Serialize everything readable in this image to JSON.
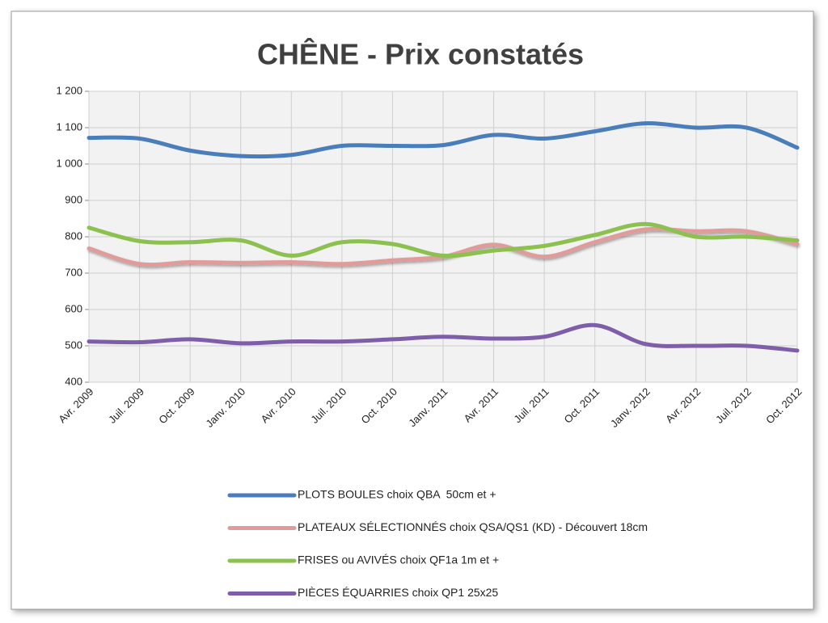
{
  "chart_data": {
    "type": "line",
    "title": "CHÊNE - Prix constatés",
    "categories": [
      "Avr. 2009",
      "Juil. 2009",
      "Oct. 2009",
      "Janv. 2010",
      "Avr. 2010",
      "Juil. 2010",
      "Oct. 2010",
      "Janv. 2011",
      "Avr. 2011",
      "Juil. 2011",
      "Oct. 2011",
      "Janv. 2012",
      "Avr. 2012",
      "Juil. 2012",
      "Oct. 2012"
    ],
    "series": [
      {
        "name": "PLOTS BOULES choix QBA  50cm et +",
        "color": "#4a7ebb",
        "values": [
          1072,
          1070,
          1037,
          1022,
          1025,
          1050,
          1050,
          1052,
          1080,
          1070,
          1090,
          1112,
          1100,
          1100,
          1045
        ]
      },
      {
        "name": "PLATEAUX SÉLECTIONNÉS choix QSA/QS1 (KD) - Découvert 18cm",
        "color": "#e09b9b",
        "values": [
          768,
          725,
          730,
          728,
          730,
          725,
          735,
          745,
          778,
          745,
          785,
          820,
          815,
          815,
          780
        ]
      },
      {
        "name": "FRISES ou AVIVÉS choix QF1a 1m et +",
        "color": "#8cc04f",
        "values": [
          825,
          788,
          785,
          790,
          748,
          785,
          780,
          748,
          762,
          775,
          805,
          835,
          800,
          800,
          790
        ]
      },
      {
        "name": "PIÈCES ÉQUARRIES choix QP1 25x25",
        "color": "#7e5ea8",
        "values": [
          512,
          510,
          518,
          507,
          512,
          512,
          518,
          525,
          520,
          525,
          557,
          505,
          500,
          500,
          487
        ]
      }
    ],
    "ylim": [
      400,
      1200
    ],
    "yticks": [
      400,
      500,
      600,
      700,
      800,
      900,
      {
        "value": 1000,
        "label": "1 000"
      },
      {
        "value": 1100,
        "label": "1 100"
      },
      {
        "value": 1200,
        "label": "1 200"
      }
    ],
    "grid": true,
    "legend": "bottom"
  }
}
